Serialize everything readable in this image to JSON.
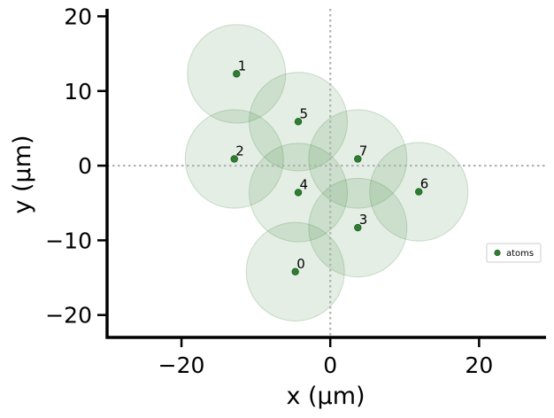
{
  "chart_data": {
    "type": "scatter",
    "xlabel": "x (μm)",
    "ylabel": "y (μm)",
    "xlim": [
      -30,
      29
    ],
    "ylim": [
      -23,
      21
    ],
    "xticks": [
      -20,
      0,
      20
    ],
    "xtick_labels": [
      "−20",
      "0",
      "20"
    ],
    "yticks": [
      -20,
      -10,
      0,
      10,
      20
    ],
    "ytick_labels": [
      "−20",
      "−10",
      "0",
      "10",
      "20"
    ],
    "reference_lines": {
      "x": 0,
      "y": 0,
      "style": "dotted",
      "color": "#b0b0b0"
    },
    "blockade_radius": 6.6,
    "point_color": "#2e7d32",
    "halo_color": "#2e7d32",
    "legend": {
      "entries": [
        "atoms"
      ],
      "placement": "right"
    },
    "series": [
      {
        "name": "atoms",
        "points": [
          {
            "label": "0",
            "x": -4.7,
            "y": -14.2
          },
          {
            "label": "1",
            "x": -12.6,
            "y": 12.3
          },
          {
            "label": "2",
            "x": -12.9,
            "y": 0.9
          },
          {
            "label": "3",
            "x": 3.7,
            "y": -8.3
          },
          {
            "label": "4",
            "x": -4.3,
            "y": -3.6
          },
          {
            "label": "5",
            "x": -4.3,
            "y": 5.9
          },
          {
            "label": "6",
            "x": 11.9,
            "y": -3.5
          },
          {
            "label": "7",
            "x": 3.7,
            "y": 0.9
          }
        ]
      }
    ]
  }
}
